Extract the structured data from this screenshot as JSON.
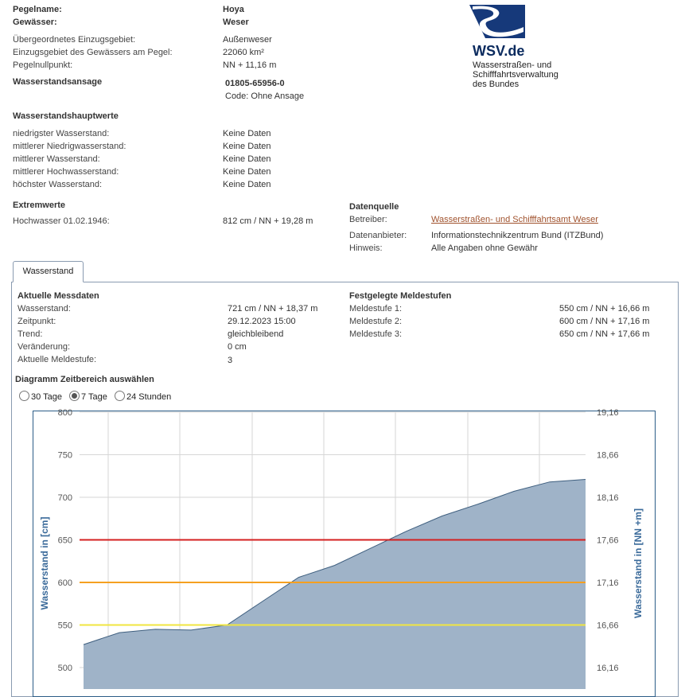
{
  "station": {
    "pegelname_label": "Pegelname:",
    "pegelname": "Hoya",
    "gewaesser_label": "Gewässer:",
    "gewaesser": "Weser",
    "einzugsgebiet_label": "Übergeordnetes Einzugsgebiet:",
    "einzugsgebiet": "Außenweser",
    "einzugsgebiet_pegel_label": "Einzugsgebiet des Gewässers am Pegel:",
    "einzugsgebiet_pegel": "22060 km²",
    "pegelnullpunkt_label": "Pegelnullpunkt:",
    "pegelnullpunkt": "NN + 11,16 m",
    "ansage_label": "Wasserstandsansage",
    "ansage_phone": "01805-65956-0",
    "ansage_code": "Code: Ohne Ansage"
  },
  "logo": {
    "name": "WSV.de",
    "sub_lines": [
      "Wasserstraßen- und",
      "Schifffahrtsverwaltung",
      "des Bundes"
    ]
  },
  "hauptwerte": {
    "heading": "Wasserstandshauptwerte",
    "rows": [
      {
        "label": "niedrigster Wasserstand:",
        "value": "Keine Daten"
      },
      {
        "label": "mittlerer Niedrigwasserstand:",
        "value": "Keine Daten"
      },
      {
        "label": "mittlerer Wasserstand:",
        "value": "Keine Daten"
      },
      {
        "label": "mittlerer Hochwasserstand:",
        "value": "Keine Daten"
      },
      {
        "label": "höchster Wasserstand:",
        "value": "Keine Daten"
      }
    ]
  },
  "extremwerte": {
    "heading": "Extremwerte",
    "label": "Hochwasser 01.02.1946:",
    "value": "812 cm / NN + 19,28 m"
  },
  "datenquelle": {
    "heading": "Datenquelle",
    "betreiber_label": "Betreiber:",
    "betreiber": "Wasserstraßen- und Schifffahrtsamt Weser",
    "anbieter_label": "Datenanbieter:",
    "anbieter": "Informationstechnikzentrum Bund (ITZBund)",
    "hinweis_label": "Hinweis:",
    "hinweis": "Alle Angaben ohne Gewähr"
  },
  "tabs": [
    "Wasserstand"
  ],
  "messdaten": {
    "heading": "Aktuelle Messdaten",
    "rows": [
      {
        "label": "Wasserstand:",
        "value": "721 cm / NN + 18,37 m"
      },
      {
        "label": "Zeitpunkt:",
        "value": "29.12.2023 15:00"
      },
      {
        "label": "Trend:",
        "value": "gleichbleibend"
      },
      {
        "label": "Veränderung:",
        "value": "0 cm"
      },
      {
        "label": "Aktuelle Meldestufe:",
        "value": "3"
      }
    ]
  },
  "meldestufen": {
    "heading": "Festgelegte Meldestufen",
    "rows": [
      {
        "label": "Meldestufe 1:",
        "value": "550 cm / NN + 16,66 m"
      },
      {
        "label": "Meldestufe 2:",
        "value": "600 cm / NN + 17,16 m"
      },
      {
        "label": "Meldestufe 3:",
        "value": "650 cm / NN + 17,66 m"
      }
    ]
  },
  "diagramm": {
    "heading": "Diagramm Zeitbereich auswählen",
    "options": [
      {
        "label": "30 Tage",
        "checked": false
      },
      {
        "label": "7 Tage",
        "checked": true
      },
      {
        "label": "24 Stunden",
        "checked": false
      }
    ]
  },
  "chart_data": {
    "type": "area",
    "ylabel_left": "Wasserstand in [cm]",
    "ylabel_right": "Wasserstand in [NN +m]",
    "left_ticks": [
      "500",
      "550",
      "600",
      "650",
      "700",
      "750",
      "800"
    ],
    "right_ticks": [
      "16,16",
      "16,66",
      "17,16",
      "17,66",
      "18,16",
      "18,66",
      "19,16"
    ],
    "ylim": [
      480,
      800
    ],
    "x": [
      0,
      0.5,
      1,
      1.5,
      2,
      2.5,
      3,
      3.5,
      4,
      4.5,
      5,
      5.5,
      6,
      6.5,
      7
    ],
    "values": [
      527,
      541,
      545,
      544,
      550,
      578,
      606,
      620,
      640,
      660,
      678,
      692,
      707,
      718,
      721
    ],
    "thresholds": [
      {
        "value": 650,
        "color": "#d42020"
      },
      {
        "value": 600,
        "color": "#f5a020"
      },
      {
        "value": 550,
        "color": "#f0e640"
      }
    ],
    "area_color": "#9fb3c8",
    "area_line_color": "#3f5f7f",
    "grid": true
  }
}
